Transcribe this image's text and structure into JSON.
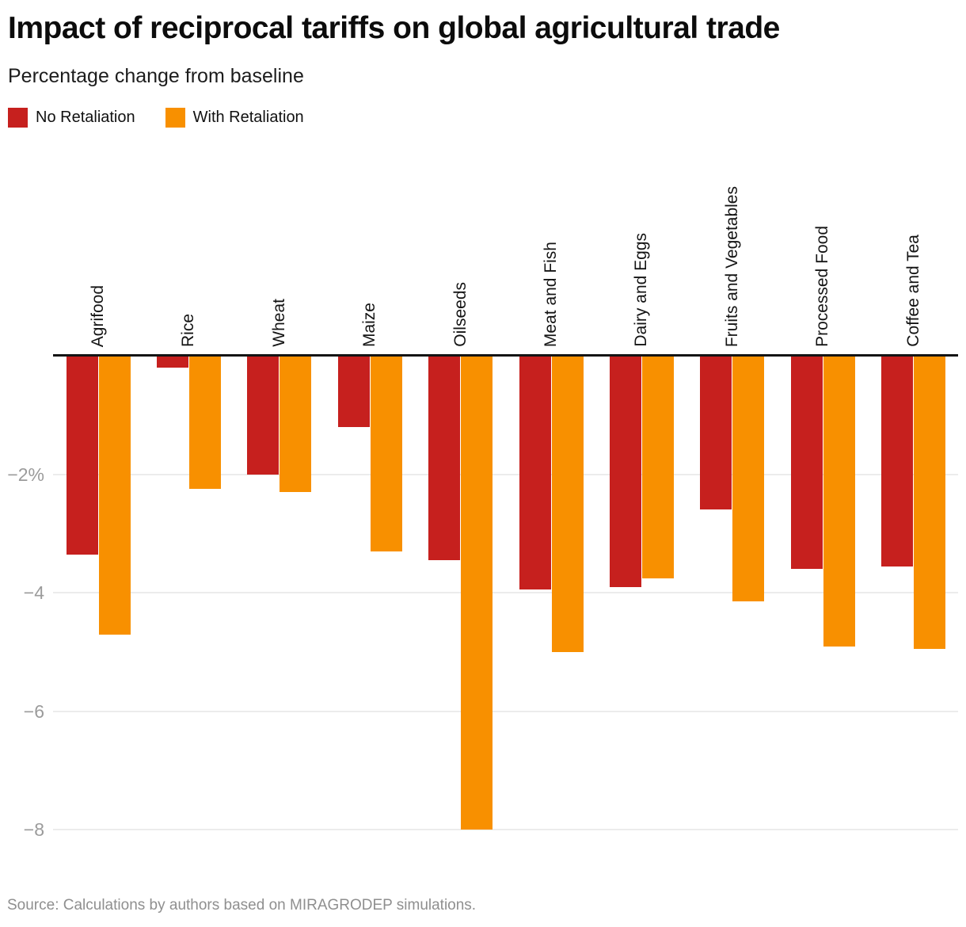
{
  "header": {
    "title": "Impact of reciprocal tariffs on global agricultural trade",
    "subtitle": "Percentage change from baseline"
  },
  "legend": [
    {
      "label": "No Retaliation",
      "color": "#c6201e"
    },
    {
      "label": "With Retaliation",
      "color": "#f89000"
    }
  ],
  "chart_data": {
    "type": "bar",
    "orientation": "vertical-negative",
    "title": "Impact of reciprocal tariffs on global agricultural trade",
    "subtitle": "Percentage change from baseline",
    "xlabel": "",
    "ylabel": "Percentage change from baseline",
    "ylim": [
      -8.4,
      0
    ],
    "grid": true,
    "legend_position": "top-left",
    "categories": [
      "Agrifood",
      "Rice",
      "Wheat",
      "Maize",
      "Oilseeds",
      "Meat and Fish",
      "Dairy and Eggs",
      "Fruits and Vegetables",
      "Processed Food",
      "Coffee and Tea"
    ],
    "series": [
      {
        "name": "No Retaliation",
        "color": "#c6201e",
        "values": [
          -3.35,
          -0.2,
          -2.0,
          -1.2,
          -3.45,
          -3.95,
          -3.9,
          -2.6,
          -3.6,
          -3.55
        ]
      },
      {
        "name": "With Retaliation",
        "color": "#f89000",
        "values": [
          -4.7,
          -2.25,
          -2.3,
          -3.3,
          -8.0,
          -5.0,
          -3.75,
          -4.15,
          -4.9,
          -4.95
        ]
      }
    ],
    "yticks": [
      {
        "value": -2,
        "label": "−2%"
      },
      {
        "value": -4,
        "label": "−4"
      },
      {
        "value": -6,
        "label": "−6"
      },
      {
        "value": -8,
        "label": "−8"
      }
    ]
  },
  "footer": {
    "source": "Source: Calculations by authors based on MIRAGRODEP simulations."
  }
}
